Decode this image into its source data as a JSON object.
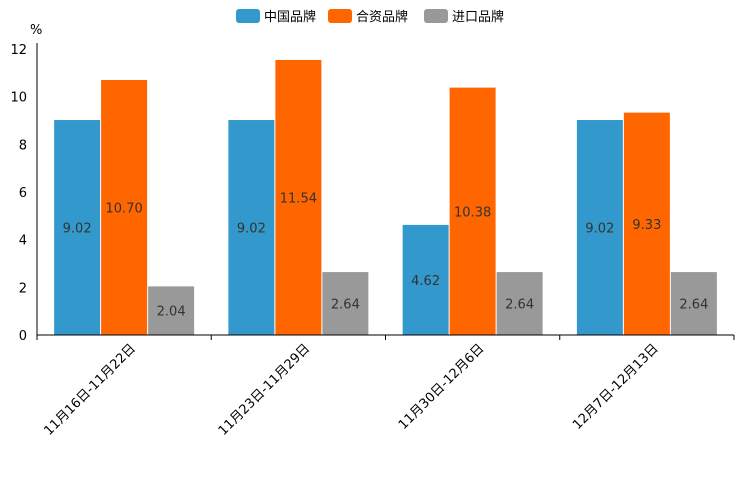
{
  "chart_data": {
    "type": "bar",
    "unit_label": "%",
    "categories": [
      "11月16日-11月22日",
      "11月23日-11月29日",
      "11月30日-12月6日",
      "12月7日-12月13日"
    ],
    "series": [
      {
        "name": "中国品牌",
        "color": "#3399cc",
        "values": [
          9.02,
          9.02,
          4.62,
          9.02
        ],
        "labels": [
          "9.02",
          "9.02",
          "4.62",
          "9.02"
        ]
      },
      {
        "name": "合资品牌",
        "color": "#ff6600",
        "values": [
          10.7,
          11.54,
          10.38,
          9.33
        ],
        "labels": [
          "10.70",
          "11.54",
          "10.38",
          "9.33"
        ]
      },
      {
        "name": "进口品牌",
        "color": "#999999",
        "values": [
          2.04,
          2.64,
          2.64,
          2.64
        ],
        "labels": [
          "2.04",
          "2.64",
          "2.64",
          "2.64"
        ]
      }
    ],
    "ylim": [
      0,
      12
    ],
    "yticks": [
      0,
      2,
      4,
      6,
      8,
      10,
      12
    ],
    "legend_position": "top-center",
    "grid": false
  }
}
